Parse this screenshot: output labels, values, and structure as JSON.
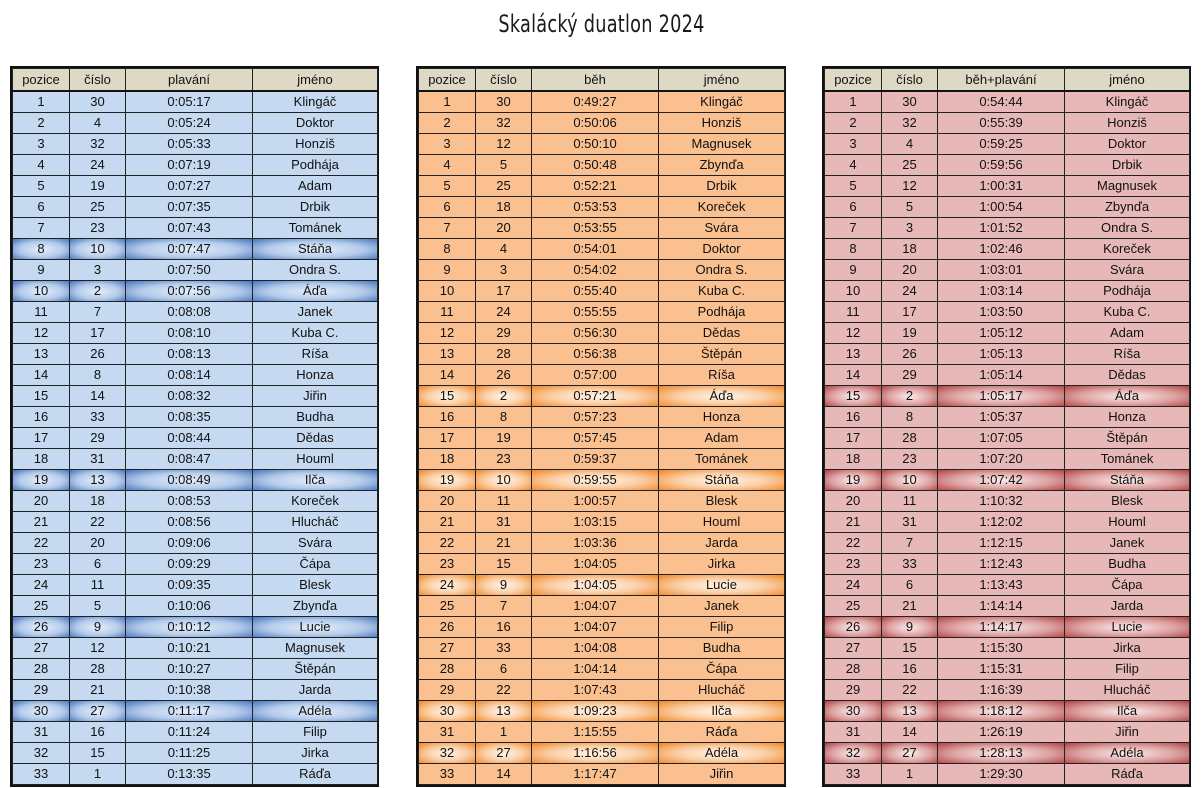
{
  "title": "Skalácký duatlon 2024",
  "tables": [
    {
      "id": "plavani",
      "headers": [
        "pozice",
        "číslo",
        "plavání",
        "jméno"
      ],
      "color": "#c5d9f1",
      "rows": [
        [
          "1",
          "30",
          "0:05:17",
          "Klingáč"
        ],
        [
          "2",
          "4",
          "0:05:24",
          "Doktor"
        ],
        [
          "3",
          "32",
          "0:05:33",
          "Honziš"
        ],
        [
          "4",
          "24",
          "0:07:19",
          "Podhája"
        ],
        [
          "5",
          "19",
          "0:07:27",
          "Adam"
        ],
        [
          "6",
          "25",
          "0:07:35",
          "Drbik"
        ],
        [
          "7",
          "23",
          "0:07:43",
          "Tománek"
        ],
        [
          "8",
          "10",
          "0:07:47",
          "Stáňa"
        ],
        [
          "9",
          "3",
          "0:07:50",
          "Ondra S."
        ],
        [
          "10",
          "2",
          "0:07:56",
          "Áďa"
        ],
        [
          "11",
          "7",
          "0:08:08",
          "Janek"
        ],
        [
          "12",
          "17",
          "0:08:10",
          "Kuba C."
        ],
        [
          "13",
          "26",
          "0:08:13",
          "Ríša"
        ],
        [
          "14",
          "8",
          "0:08:14",
          "Honza"
        ],
        [
          "15",
          "14",
          "0:08:32",
          "Jiřin"
        ],
        [
          "16",
          "33",
          "0:08:35",
          "Budha"
        ],
        [
          "17",
          "29",
          "0:08:44",
          "Dědas"
        ],
        [
          "18",
          "31",
          "0:08:47",
          "Houml"
        ],
        [
          "19",
          "13",
          "0:08:49",
          "Ilča"
        ],
        [
          "20",
          "18",
          "0:08:53",
          "Koreček"
        ],
        [
          "21",
          "22",
          "0:08:56",
          "Hlucháč"
        ],
        [
          "22",
          "20",
          "0:09:06",
          "Svára"
        ],
        [
          "23",
          "6",
          "0:09:29",
          "Čápa"
        ],
        [
          "24",
          "11",
          "0:09:35",
          "Blesk"
        ],
        [
          "25",
          "5",
          "0:10:06",
          "Zbynďa"
        ],
        [
          "26",
          "9",
          "0:10:12",
          "Lucie"
        ],
        [
          "27",
          "12",
          "0:10:21",
          "Magnusek"
        ],
        [
          "28",
          "28",
          "0:10:27",
          "Štěpán"
        ],
        [
          "29",
          "21",
          "0:10:38",
          "Jarda"
        ],
        [
          "30",
          "27",
          "0:11:17",
          "Adéla"
        ],
        [
          "31",
          "16",
          "0:11:24",
          "Filip"
        ],
        [
          "32",
          "15",
          "0:11:25",
          "Jirka"
        ],
        [
          "33",
          "1",
          "0:13:35",
          "Ráďa"
        ]
      ],
      "highlight_positions": [
        "8",
        "10",
        "19",
        "26",
        "30"
      ]
    },
    {
      "id": "beh",
      "headers": [
        "pozice",
        "číslo",
        "běh",
        "jméno"
      ],
      "color": "#fac090",
      "rows": [
        [
          "1",
          "30",
          "0:49:27",
          "Klingáč"
        ],
        [
          "2",
          "32",
          "0:50:06",
          "Honziš"
        ],
        [
          "3",
          "12",
          "0:50:10",
          "Magnusek"
        ],
        [
          "4",
          "5",
          "0:50:48",
          "Zbynďa"
        ],
        [
          "5",
          "25",
          "0:52:21",
          "Drbik"
        ],
        [
          "6",
          "18",
          "0:53:53",
          "Koreček"
        ],
        [
          "7",
          "20",
          "0:53:55",
          "Svára"
        ],
        [
          "8",
          "4",
          "0:54:01",
          "Doktor"
        ],
        [
          "9",
          "3",
          "0:54:02",
          "Ondra S."
        ],
        [
          "10",
          "17",
          "0:55:40",
          "Kuba C."
        ],
        [
          "11",
          "24",
          "0:55:55",
          "Podhája"
        ],
        [
          "12",
          "29",
          "0:56:30",
          "Dědas"
        ],
        [
          "13",
          "28",
          "0:56:38",
          "Štěpán"
        ],
        [
          "14",
          "26",
          "0:57:00",
          "Ríša"
        ],
        [
          "15",
          "2",
          "0:57:21",
          "Áďa"
        ],
        [
          "16",
          "8",
          "0:57:23",
          "Honza"
        ],
        [
          "17",
          "19",
          "0:57:45",
          "Adam"
        ],
        [
          "18",
          "23",
          "0:59:37",
          "Tománek"
        ],
        [
          "19",
          "10",
          "0:59:55",
          "Stáňa"
        ],
        [
          "20",
          "11",
          "1:00:57",
          "Blesk"
        ],
        [
          "21",
          "31",
          "1:03:15",
          "Houml"
        ],
        [
          "22",
          "21",
          "1:03:36",
          "Jarda"
        ],
        [
          "23",
          "15",
          "1:04:05",
          "Jirka"
        ],
        [
          "24",
          "9",
          "1:04:05",
          "Lucie"
        ],
        [
          "25",
          "7",
          "1:04:07",
          "Janek"
        ],
        [
          "26",
          "16",
          "1:04:07",
          "Filip"
        ],
        [
          "27",
          "33",
          "1:04:08",
          "Budha"
        ],
        [
          "28",
          "6",
          "1:04:14",
          "Čápa"
        ],
        [
          "29",
          "22",
          "1:07:43",
          "Hlucháč"
        ],
        [
          "30",
          "13",
          "1:09:23",
          "Ilča"
        ],
        [
          "31",
          "1",
          "1:15:55",
          "Ráďa"
        ],
        [
          "32",
          "27",
          "1:16:56",
          "Adéla"
        ],
        [
          "33",
          "14",
          "1:17:47",
          "Jiřin"
        ]
      ],
      "highlight_positions": [
        "15",
        "19",
        "24",
        "30",
        "32"
      ]
    },
    {
      "id": "beh-plavani",
      "headers": [
        "pozice",
        "číslo",
        "běh+plavání",
        "jméno"
      ],
      "color": "#e6b8b7",
      "rows": [
        [
          "1",
          "30",
          "0:54:44",
          "Klingáč"
        ],
        [
          "2",
          "32",
          "0:55:39",
          "Honziš"
        ],
        [
          "3",
          "4",
          "0:59:25",
          "Doktor"
        ],
        [
          "4",
          "25",
          "0:59:56",
          "Drbik"
        ],
        [
          "5",
          "12",
          "1:00:31",
          "Magnusek"
        ],
        [
          "6",
          "5",
          "1:00:54",
          "Zbynďa"
        ],
        [
          "7",
          "3",
          "1:01:52",
          "Ondra S."
        ],
        [
          "8",
          "18",
          "1:02:46",
          "Koreček"
        ],
        [
          "9",
          "20",
          "1:03:01",
          "Svára"
        ],
        [
          "10",
          "24",
          "1:03:14",
          "Podhája"
        ],
        [
          "11",
          "17",
          "1:03:50",
          "Kuba C."
        ],
        [
          "12",
          "19",
          "1:05:12",
          "Adam"
        ],
        [
          "13",
          "26",
          "1:05:13",
          "Ríša"
        ],
        [
          "14",
          "29",
          "1:05:14",
          "Dědas"
        ],
        [
          "15",
          "2",
          "1:05:17",
          "Áďa"
        ],
        [
          "16",
          "8",
          "1:05:37",
          "Honza"
        ],
        [
          "17",
          "28",
          "1:07:05",
          "Štěpán"
        ],
        [
          "18",
          "23",
          "1:07:20",
          "Tománek"
        ],
        [
          "19",
          "10",
          "1:07:42",
          "Stáňa"
        ],
        [
          "20",
          "11",
          "1:10:32",
          "Blesk"
        ],
        [
          "21",
          "31",
          "1:12:02",
          "Houml"
        ],
        [
          "22",
          "7",
          "1:12:15",
          "Janek"
        ],
        [
          "23",
          "33",
          "1:12:43",
          "Budha"
        ],
        [
          "24",
          "6",
          "1:13:43",
          "Čápa"
        ],
        [
          "25",
          "21",
          "1:14:14",
          "Jarda"
        ],
        [
          "26",
          "9",
          "1:14:17",
          "Lucie"
        ],
        [
          "27",
          "15",
          "1:15:30",
          "Jirka"
        ],
        [
          "28",
          "16",
          "1:15:31",
          "Filip"
        ],
        [
          "29",
          "22",
          "1:16:39",
          "Hlucháč"
        ],
        [
          "30",
          "13",
          "1:18:12",
          "Ilča"
        ],
        [
          "31",
          "14",
          "1:26:19",
          "Jiřin"
        ],
        [
          "32",
          "27",
          "1:28:13",
          "Adéla"
        ],
        [
          "33",
          "1",
          "1:29:30",
          "Ráďa"
        ]
      ],
      "highlight_positions": [
        "15",
        "19",
        "26",
        "30",
        "32"
      ]
    }
  ]
}
